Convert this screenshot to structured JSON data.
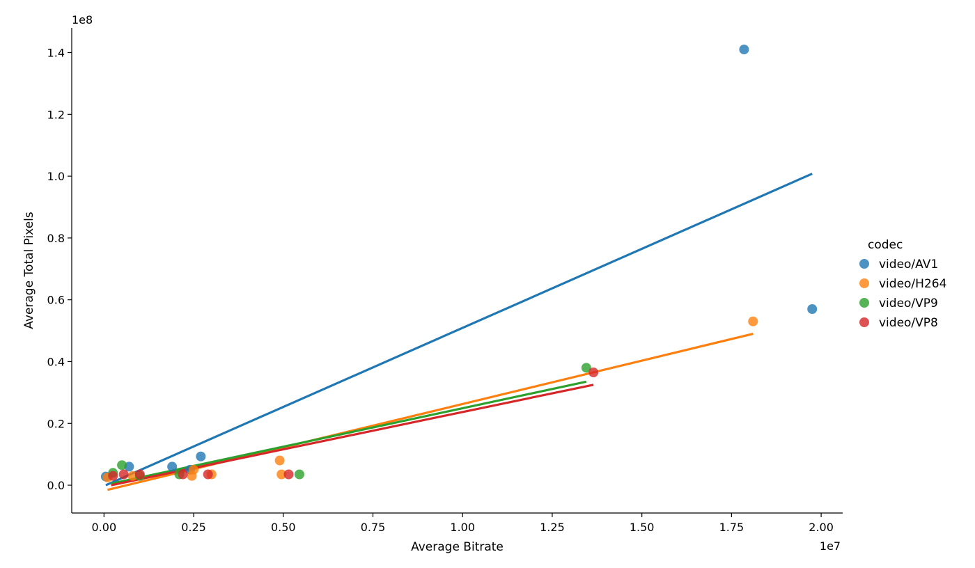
{
  "chart_data": {
    "type": "scatter",
    "title": "",
    "xlabel": "Average Bitrate",
    "ylabel": "Average Total Pixels",
    "x_offset_label": "1e7",
    "y_offset_label": "1e8",
    "xlim": [
      -0.09,
      2.06
    ],
    "ylim": [
      -0.09,
      1.48
    ],
    "x_ticks": [
      0.0,
      0.25,
      0.5,
      0.75,
      1.0,
      1.25,
      1.5,
      1.75,
      2.0
    ],
    "x_tick_labels": [
      "0.00",
      "0.25",
      "0.50",
      "0.75",
      "1.00",
      "1.25",
      "1.50",
      "1.75",
      "2.00"
    ],
    "y_ticks": [
      0.0,
      0.2,
      0.4,
      0.6,
      0.8,
      1.0,
      1.2,
      1.4
    ],
    "y_tick_labels": [
      "0.0",
      "0.2",
      "0.4",
      "0.6",
      "0.8",
      "1.0",
      "1.2",
      "1.4"
    ],
    "grid": false,
    "legend": {
      "title": "codec",
      "position": "right"
    },
    "series": [
      {
        "name": "video/AV1",
        "color": "#1f77b4",
        "points": [
          [
            0.005,
            0.028
          ],
          [
            0.07,
            0.06
          ],
          [
            0.19,
            0.06
          ],
          [
            0.24,
            0.05
          ],
          [
            0.27,
            0.093
          ],
          [
            1.785,
            1.41
          ],
          [
            1.975,
            0.57
          ]
        ],
        "fit": [
          [
            0.005,
            0.0
          ],
          [
            1.975,
            1.008
          ]
        ]
      },
      {
        "name": "video/H264",
        "color": "#ff7f0e",
        "points": [
          [
            0.01,
            0.025
          ],
          [
            0.08,
            0.03
          ],
          [
            0.245,
            0.03
          ],
          [
            0.25,
            0.05
          ],
          [
            0.3,
            0.035
          ],
          [
            0.49,
            0.08
          ],
          [
            0.495,
            0.035
          ],
          [
            1.81,
            0.53
          ]
        ],
        "fit": [
          [
            0.01,
            -0.015
          ],
          [
            1.81,
            0.49
          ]
        ]
      },
      {
        "name": "video/VP9",
        "color": "#2ca02c",
        "points": [
          [
            0.025,
            0.04
          ],
          [
            0.05,
            0.065
          ],
          [
            0.1,
            0.03
          ],
          [
            0.21,
            0.035
          ],
          [
            0.545,
            0.035
          ],
          [
            1.345,
            0.38
          ]
        ],
        "fit": [
          [
            0.02,
            0.005
          ],
          [
            1.345,
            0.335
          ]
        ]
      },
      {
        "name": "video/VP8",
        "color": "#d62728",
        "points": [
          [
            0.025,
            0.03
          ],
          [
            0.055,
            0.035
          ],
          [
            0.1,
            0.035
          ],
          [
            0.22,
            0.035
          ],
          [
            0.29,
            0.035
          ],
          [
            0.515,
            0.035
          ],
          [
            1.365,
            0.365
          ]
        ],
        "fit": [
          [
            0.02,
            0.0
          ],
          [
            1.365,
            0.325
          ]
        ]
      }
    ]
  }
}
